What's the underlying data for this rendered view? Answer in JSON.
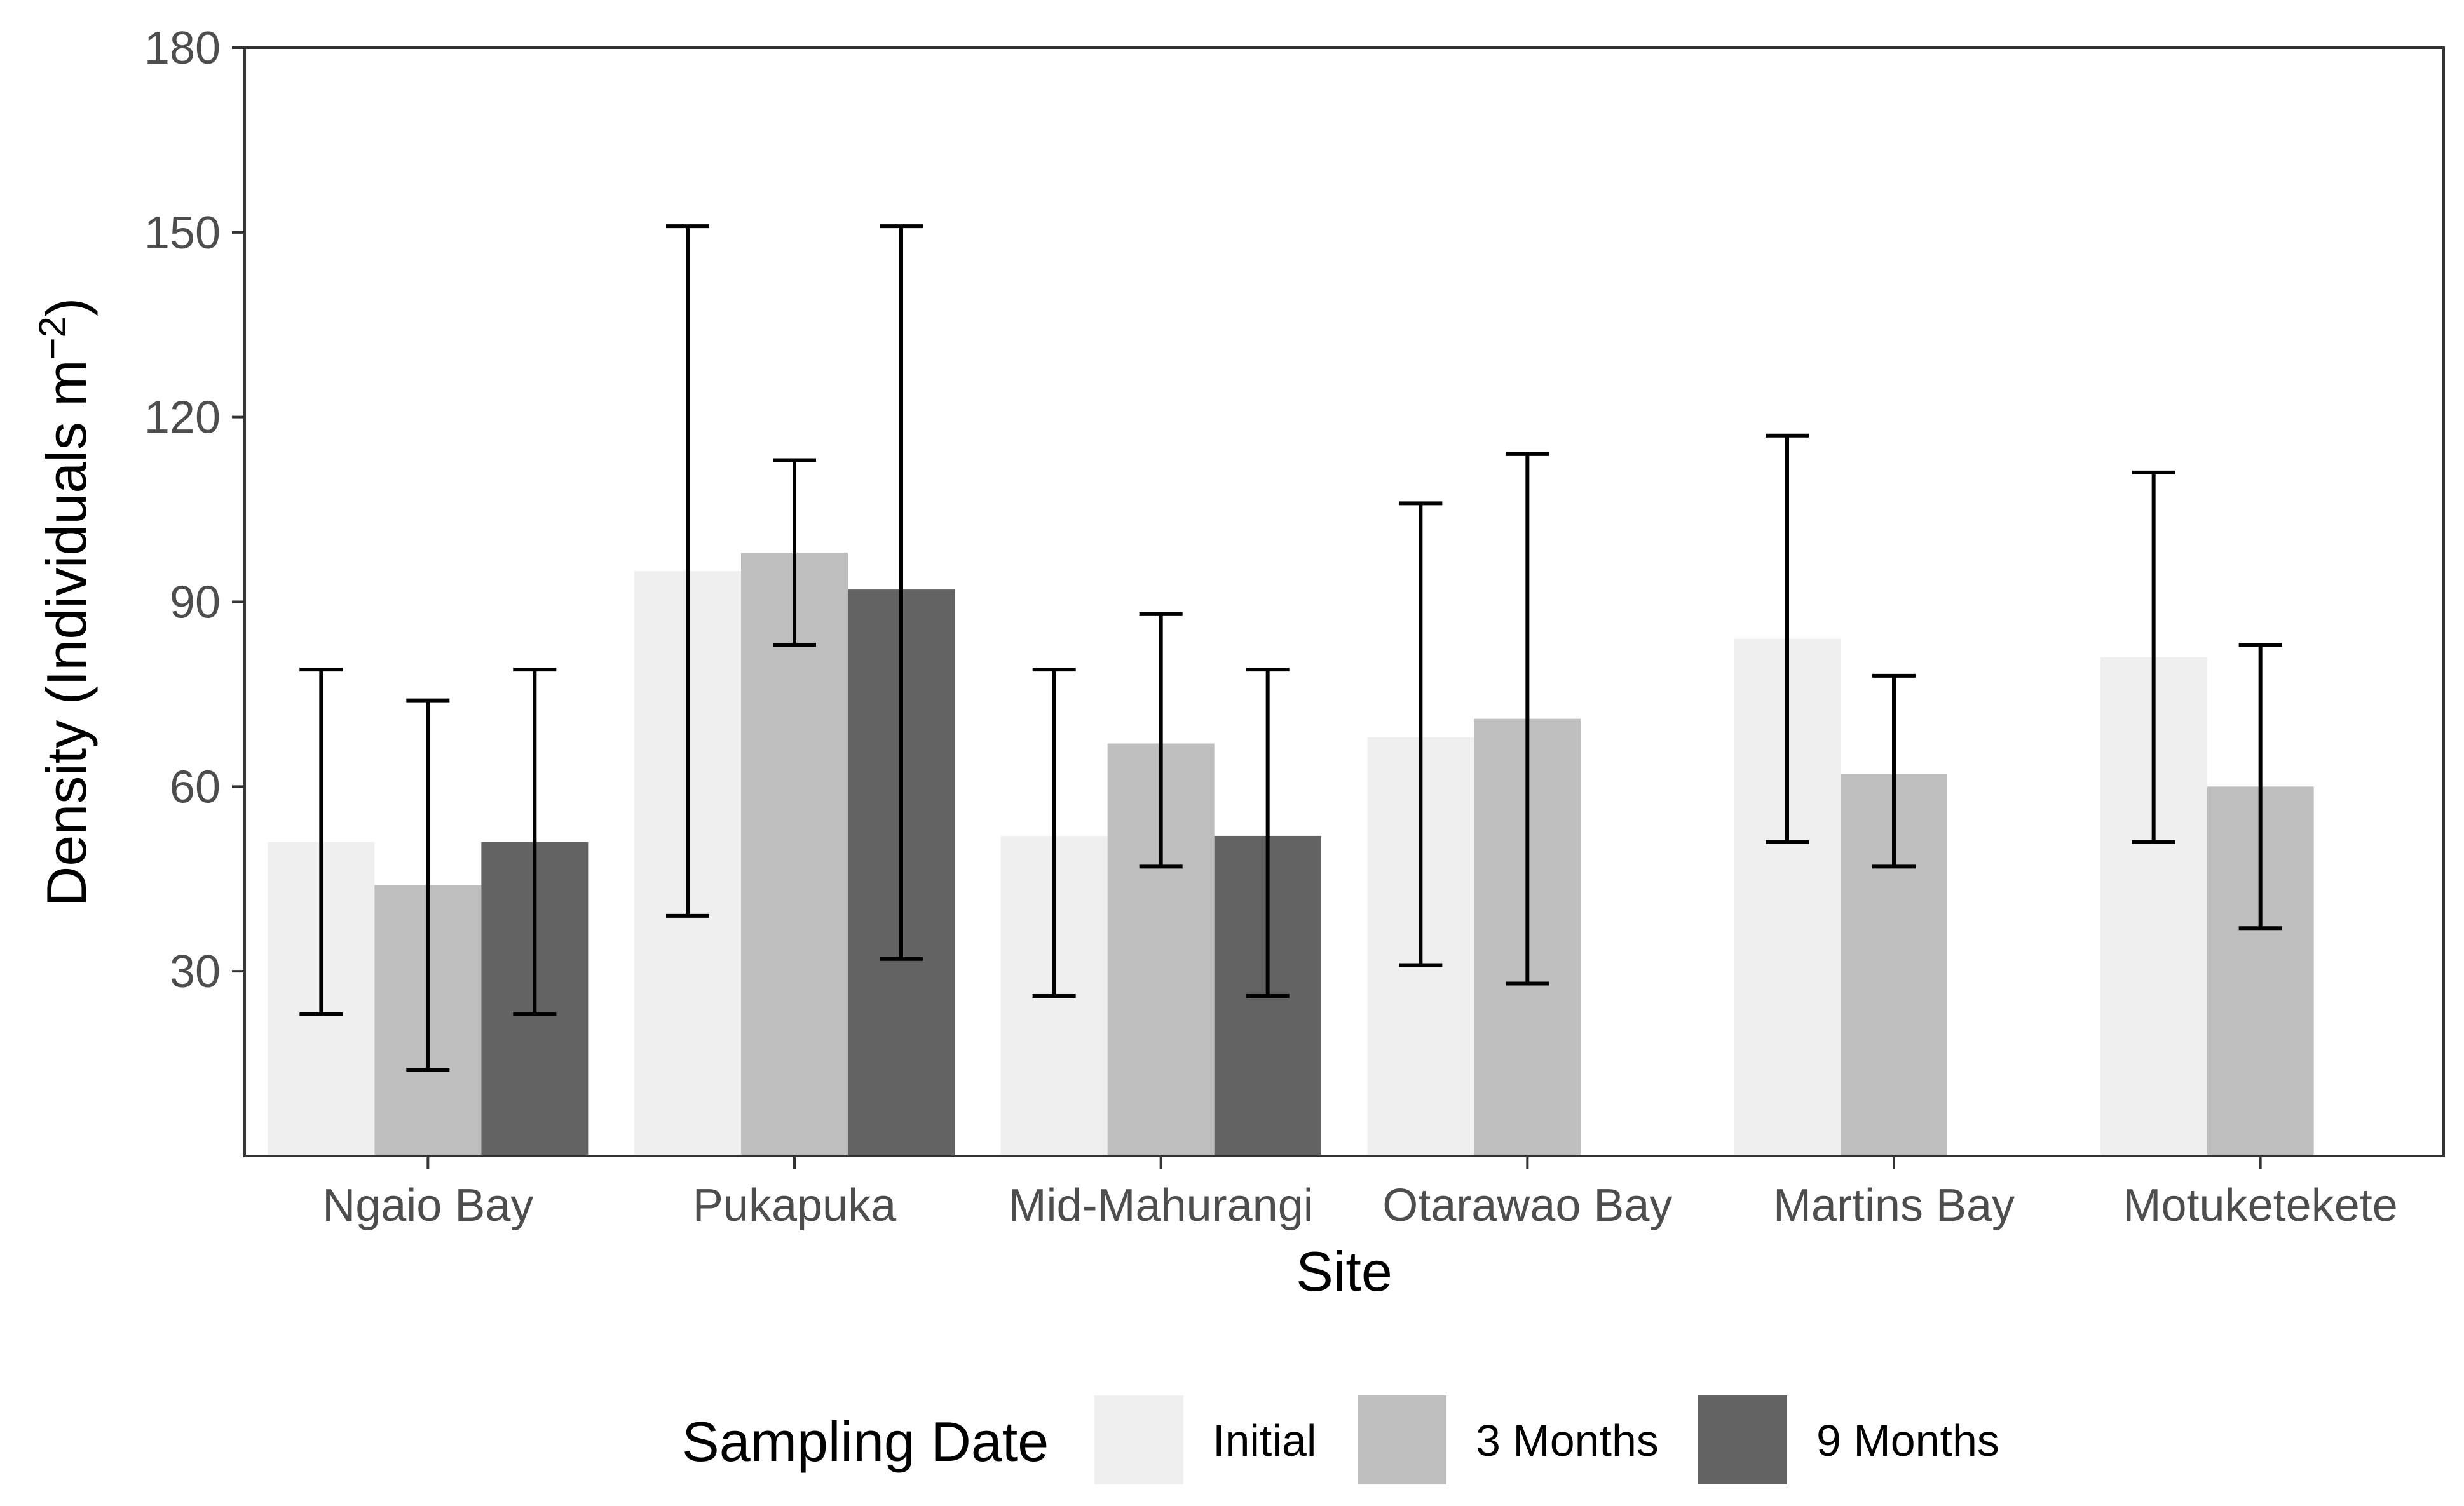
{
  "chart_data": {
    "type": "bar",
    "title": "",
    "xlabel": "Site",
    "ylabel": "Density (Individuals m",
    "ylabel_superscript": "−2",
    "ylabel_close": ")",
    "ylim": [
      0,
      180
    ],
    "yticks": [
      30,
      60,
      90,
      120,
      150,
      180
    ],
    "grid": false,
    "legend_position": "bottom",
    "legend_title": "Sampling Date",
    "categories": [
      "Ngaio Bay",
      "Pukapuka",
      "Mid-Mahurangi",
      "Otarawao Bay",
      "Martins Bay",
      "Motuketekete"
    ],
    "series": [
      {
        "name": "Initial",
        "color": "#efefef",
        "values": [
          51,
          95,
          52,
          68,
          84,
          81
        ],
        "error_low": [
          23,
          39,
          26,
          31,
          51,
          51
        ],
        "error_high": [
          79,
          151,
          79,
          106,
          117,
          111
        ]
      },
      {
        "name": "3 Months",
        "color": "#bebebe",
        "values": [
          44,
          98,
          67,
          71,
          62,
          60
        ],
        "error_low": [
          14,
          83,
          47,
          28,
          47,
          37
        ],
        "error_high": [
          74,
          113,
          88,
          114,
          78,
          83
        ]
      },
      {
        "name": "9 Months",
        "color": "#636363",
        "values": [
          51,
          92,
          52,
          null,
          null,
          null
        ],
        "error_low": [
          23,
          32,
          26,
          null,
          null,
          null
        ],
        "error_high": [
          79,
          151,
          79,
          null,
          null,
          null
        ]
      }
    ]
  }
}
